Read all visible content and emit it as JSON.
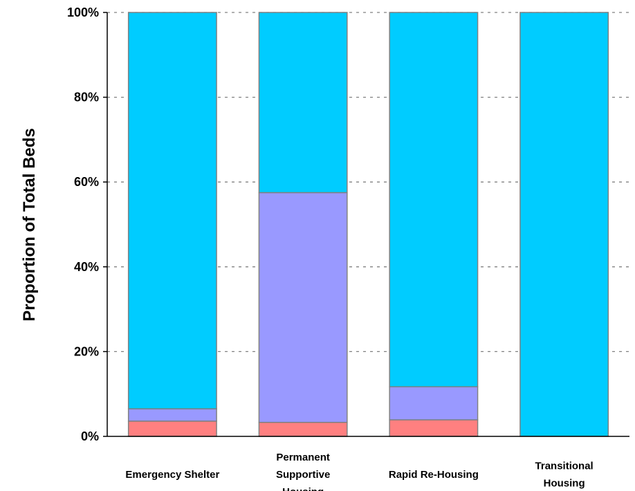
{
  "chart_data": {
    "type": "bar",
    "stacked": true,
    "normalized": true,
    "title": "",
    "xlabel": "",
    "ylabel": "Proportion of Total Beds",
    "ylim": [
      0,
      100
    ],
    "y_ticks": [
      "0%",
      "20%",
      "40%",
      "60%",
      "80%",
      "100%"
    ],
    "grid": true,
    "legend": "none",
    "categories": [
      [
        "Emergency Shelter"
      ],
      [
        "Permanent",
        "Supportive",
        "Housing"
      ],
      [
        "Rapid Re-Housing"
      ],
      [
        "Transitional",
        "Housing"
      ]
    ],
    "series": [
      {
        "color": "#ff8080",
        "values": [
          3.6,
          3.3,
          3.9,
          0
        ]
      },
      {
        "color": "#9999ff",
        "values": [
          2.9,
          54.2,
          7.8,
          0
        ]
      },
      {
        "color": "#00ccff",
        "values": [
          93.5,
          42.5,
          88.3,
          100
        ]
      }
    ]
  }
}
